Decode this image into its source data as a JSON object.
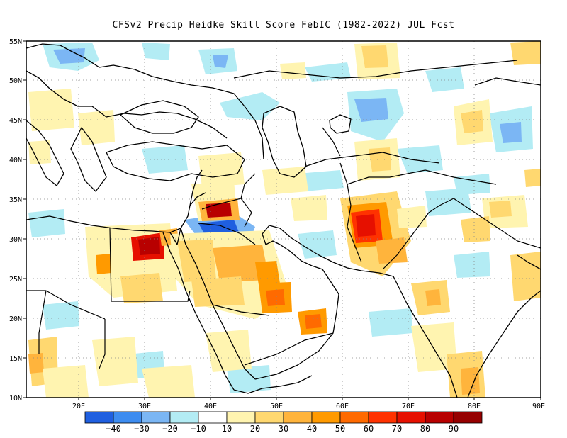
{
  "title": "CFSv2 Precip Heidke Skill Score FebIC (1982-2022) JUL Fcst",
  "map": {
    "lat_ticks": [
      "55N",
      "50N",
      "45N",
      "40N",
      "35N",
      "30N",
      "25N",
      "20N",
      "15N",
      "10N"
    ],
    "lon_ticks": [
      "20E",
      "30E",
      "40E",
      "50E",
      "60E",
      "70E",
      "80E",
      "90E"
    ]
  },
  "colorbar": {
    "labels": [
      "−40",
      "−30",
      "−20",
      "−10",
      "10",
      "20",
      "30",
      "40",
      "50",
      "60",
      "70",
      "80",
      "90"
    ],
    "colors": [
      "#1f5fe0",
      "#3d8cf0",
      "#7bb6f4",
      "#b3ecf4",
      "#ffffff",
      "#fff4b0",
      "#ffd870",
      "#ffb43c",
      "#ff9a00",
      "#ff6a00",
      "#ff3200",
      "#e61000",
      "#b80000",
      "#960000"
    ]
  },
  "colors": {
    "neg_strong": "#1f5fe0",
    "neg_mid": "#3d8cf0",
    "neg_light": "#7bb6f4",
    "neg_faint": "#b3ecf4",
    "pos_faint": "#fff4b0",
    "pos_light": "#ffd870",
    "pos_mid": "#ffb43c",
    "pos_orange": "#ff9a00",
    "pos_strong": "#ff6a00",
    "pos_red": "#e61000",
    "pos_dark": "#b80000"
  }
}
